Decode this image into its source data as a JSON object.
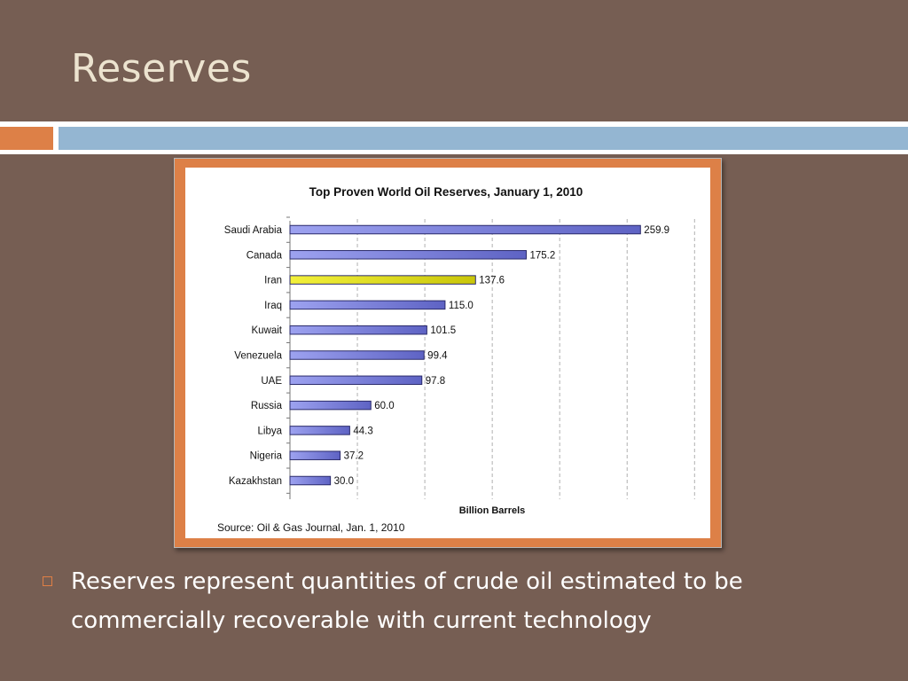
{
  "slide": {
    "title": "Reserves",
    "bullets": [
      "Reserves represent quantities of crude oil estimated to be commercially recoverable with current technology"
    ]
  },
  "theme": {
    "background": "#765e53",
    "accent_orange": "#dd8047",
    "accent_blue": "#94b6d2"
  },
  "chart_data": {
    "type": "bar",
    "orientation": "horizontal",
    "title": "Top Proven World Oil Reserves, January 1, 2010",
    "xlabel": "Billion Barrels",
    "ylabel": "",
    "source": "Source: Oil & Gas Journal, Jan. 1, 2010",
    "categories": [
      "Saudi Arabia",
      "Canada",
      "Iran",
      "Iraq",
      "Kuwait",
      "Venezuela",
      "UAE",
      "Russia",
      "Libya",
      "Nigeria",
      "Kazakhstan"
    ],
    "values": [
      259.9,
      175.2,
      137.6,
      115.0,
      101.5,
      99.4,
      97.8,
      60.0,
      44.3,
      37.2,
      30.0
    ],
    "value_labels": [
      "259.9",
      "175.2",
      "137.6",
      "115.0",
      "101.5",
      "99.4",
      "97.8",
      "60.0",
      "44.3",
      "37.2",
      "30.0"
    ],
    "highlight": "Iran",
    "xlim": [
      0,
      300
    ],
    "gridlines": [
      50,
      100,
      150,
      200,
      250,
      300
    ],
    "grid": true,
    "tick_labels_visible": false,
    "colors": {
      "bar": "#8a8fe8",
      "bar_highlight": "#e8e61a",
      "bar_border": "#2a2a6a",
      "grid": "#b0b0b0"
    }
  }
}
